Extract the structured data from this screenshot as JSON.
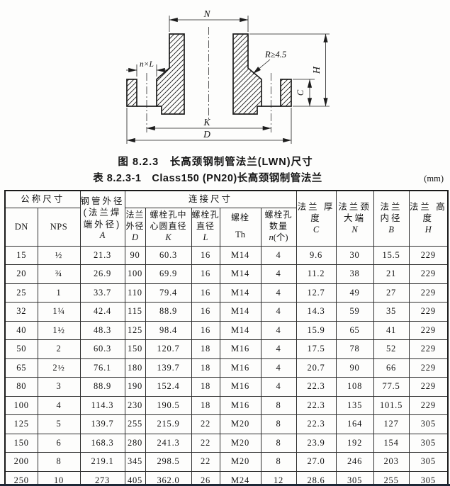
{
  "diagram": {
    "labels": {
      "neck_top_width": "N",
      "bolt_holes": "n×L",
      "fillet_radius": "R≥4.5",
      "flange_height": "H",
      "flange_thickness": "C",
      "bolt_circle": "K",
      "outer_diameter": "D"
    }
  },
  "figure_caption": "图 8.2.3　长高颈钢制管法兰(LWN)尺寸",
  "table_caption": "表 8.2.3-1　Class150 (PN20)长高颈钢制管法兰",
  "unit_note": "(mm)",
  "table": {
    "header": {
      "nominal_size": "公称尺寸",
      "dn": "DN",
      "nps": "NPS",
      "pipe_od": {
        "zh": "钢管外径\n(法兰焊\n端外径)",
        "sym": "A"
      },
      "connection": "连接尺寸",
      "flange_od": {
        "zh": "法兰\n外径",
        "sym": "D"
      },
      "bolt_circle": {
        "zh": "螺栓孔中\n心圆直径",
        "sym": "K"
      },
      "bolt_hole_dia": {
        "zh": "螺栓孔\n直径",
        "sym": "L"
      },
      "bolt": {
        "zh": "螺栓",
        "sym": "Th"
      },
      "bolt_count": {
        "zh": "螺栓孔\n数量",
        "sym": "n",
        "sym_suffix": "(个)"
      },
      "thickness": {
        "zh": "法兰\n厚度",
        "sym": "C"
      },
      "neck_big_end": {
        "zh": "法兰颈\n大端",
        "sym": "N"
      },
      "inner_dia": {
        "zh": "法兰\n内径",
        "sym": "B"
      },
      "height": {
        "zh": "法兰\n高度",
        "sym": "H"
      }
    },
    "rows": [
      [
        "15",
        "½",
        "21.3",
        "90",
        "60.3",
        "16",
        "M14",
        "4",
        "9.6",
        "30",
        "15.5",
        "229"
      ],
      [
        "20",
        "¾",
        "26.9",
        "100",
        "69.9",
        "16",
        "M14",
        "4",
        "11.2",
        "38",
        "21",
        "229"
      ],
      [
        "25",
        "1",
        "33.7",
        "110",
        "79.4",
        "16",
        "M14",
        "4",
        "12.7",
        "49",
        "27",
        "229"
      ],
      [
        "32",
        "1¼",
        "42.4",
        "115",
        "88.9",
        "16",
        "M14",
        "4",
        "14.3",
        "59",
        "35",
        "229"
      ],
      [
        "40",
        "1½",
        "48.3",
        "125",
        "98.4",
        "16",
        "M14",
        "4",
        "15.9",
        "65",
        "41",
        "229"
      ],
      [
        "50",
        "2",
        "60.3",
        "150",
        "120.7",
        "18",
        "M16",
        "4",
        "17.5",
        "78",
        "52",
        "229"
      ],
      [
        "65",
        "2½",
        "76.1",
        "180",
        "139.7",
        "18",
        "M16",
        "4",
        "20.7",
        "90",
        "66",
        "229"
      ],
      [
        "80",
        "3",
        "88.9",
        "190",
        "152.4",
        "18",
        "M16",
        "4",
        "22.3",
        "108",
        "77.5",
        "229"
      ],
      [
        "100",
        "4",
        "114.3",
        "230",
        "190.5",
        "18",
        "M16",
        "8",
        "22.3",
        "135",
        "101.5",
        "229"
      ],
      [
        "125",
        "5",
        "139.7",
        "255",
        "215.9",
        "22",
        "M20",
        "8",
        "22.3",
        "164",
        "127",
        "305"
      ],
      [
        "150",
        "6",
        "168.3",
        "280",
        "241.3",
        "22",
        "M20",
        "8",
        "23.9",
        "192",
        "154",
        "305"
      ],
      [
        "200",
        "8",
        "219.1",
        "345",
        "298.5",
        "22",
        "M20",
        "8",
        "27.0",
        "246",
        "203",
        "305"
      ],
      [
        "250",
        "10",
        "273",
        "405",
        "362.0",
        "26",
        "M24",
        "12",
        "28.6",
        "305",
        "255",
        "305"
      ]
    ]
  }
}
